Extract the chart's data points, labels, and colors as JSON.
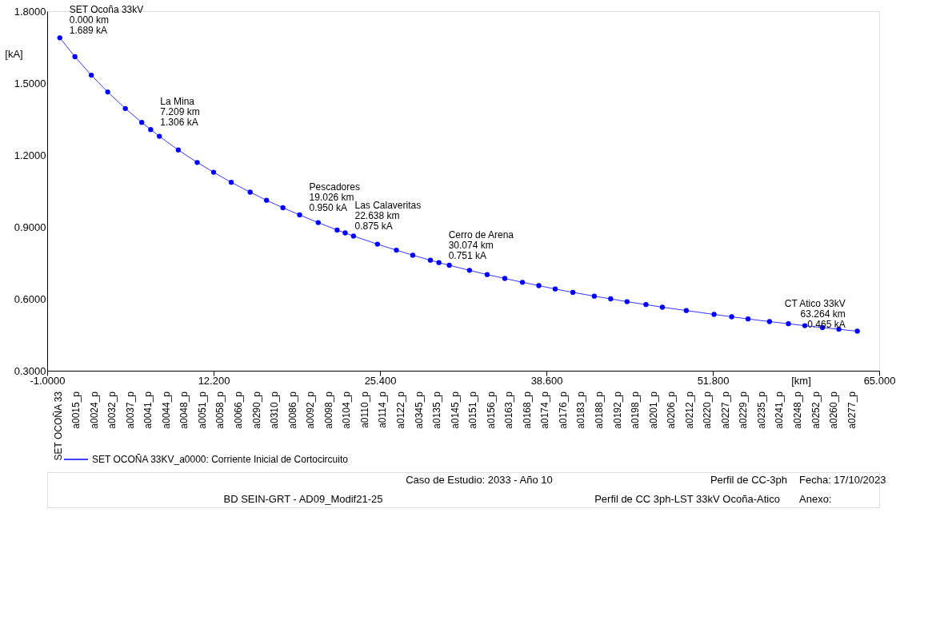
{
  "chart_data": {
    "type": "line",
    "marker": "circle",
    "legend": "bottom",
    "grid": false,
    "xlabel": "[km]",
    "ylabel": "[kA]",
    "x": [
      0,
      1.2,
      2.5,
      3.8,
      5.2,
      6.5,
      7.209,
      7.9,
      9.4,
      10.9,
      12.2,
      13.6,
      15.1,
      16.4,
      17.7,
      19.026,
      20.5,
      22.0,
      22.638,
      23.3,
      25.2,
      26.7,
      28.0,
      29.4,
      30.074,
      30.9,
      32.5,
      33.9,
      35.3,
      36.7,
      38.0,
      39.3,
      40.7,
      42.4,
      43.7,
      45.0,
      46.5,
      47.8,
      49.7,
      51.9,
      53.3,
      54.6,
      56.3,
      57.8,
      59.1,
      60.5,
      61.8,
      63.264
    ],
    "series": [
      {
        "name": "SET OCOÑA 33KV_a0000: Corriente Inicial de Cortocircuito",
        "color": "#0000ff",
        "values": [
          1.689,
          1.61,
          1.533,
          1.463,
          1.394,
          1.336,
          1.306,
          1.278,
          1.221,
          1.169,
          1.128,
          1.086,
          1.045,
          1.011,
          0.98,
          0.95,
          0.918,
          0.887,
          0.875,
          0.862,
          0.828,
          0.803,
          0.782,
          0.761,
          0.751,
          0.74,
          0.719,
          0.701,
          0.685,
          0.669,
          0.655,
          0.641,
          0.627,
          0.611,
          0.6,
          0.588,
          0.576,
          0.565,
          0.551,
          0.535,
          0.525,
          0.516,
          0.505,
          0.496,
          0.488,
          0.48,
          0.473,
          0.465
        ]
      }
    ],
    "xlim": [
      -1,
      65
    ],
    "ylim": [
      0.3,
      1.8
    ],
    "xticks": [
      {
        "value": -1,
        "label": "-1.0000"
      },
      {
        "value": 12.2,
        "label": "12.200"
      },
      {
        "value": 25.4,
        "label": "25.400"
      },
      {
        "value": 38.6,
        "label": "38.600"
      },
      {
        "value": 51.8,
        "label": "51.800"
      },
      {
        "value": 65,
        "label": "65.000"
      }
    ],
    "yticks": [
      {
        "value": 0.3,
        "label": "0.3000"
      },
      {
        "value": 0.6,
        "label": "0.6000"
      },
      {
        "value": 0.9,
        "label": "0.9000"
      },
      {
        "value": 1.2,
        "label": "1.2000"
      },
      {
        "value": 1.5,
        "label": "1.5000"
      },
      {
        "value": 1.8,
        "label": "1.8000"
      }
    ],
    "annotations": [
      "SET OCOÑA 33",
      "a0015_p",
      "a0024_p",
      "a0032_p",
      "a0037_p",
      "a0041_p",
      "a0044_p",
      "a0048_p",
      "a0051_p",
      "a0058_p",
      "a0066_p",
      "a0290_p",
      "a0310_p",
      "a0086_p",
      "a0092_p",
      "a0098_p",
      "a0104_p",
      "a0110_p",
      "a0114_p",
      "a0122_p",
      "a0345_p",
      "a0135_p",
      "a0145_p",
      "a0151_p",
      "a0156_p",
      "a0163_p",
      "a0168_p",
      "a0174_p",
      "a0176_p",
      "a0183_p",
      "a0188_p",
      "a0192_p",
      "a0198_p",
      "a0201_p",
      "a0206_p",
      "a0212_p",
      "a0220_p",
      "a0227_p",
      "a0229_p",
      "a0235_p",
      "a0241_p",
      "a0248_p",
      "a0252_p",
      "a0260_p",
      "a0277_p",
      {
        "text": "SET Ocoña 33kV\n0.000 km\n1.689 kA",
        "x": 0,
        "y": 1.689
      },
      {
        "text": "La Mina\n7.209 km\n1.306 kA",
        "x": 7.209,
        "y": 1.306
      },
      {
        "text": "Pescadores\n19.026 km\n0.950 kA",
        "x": 19.026,
        "y": 0.95
      },
      {
        "text": "Las Calaveritas\n22.638 km\n0.875 kA",
        "x": 22.638,
        "y": 0.875
      },
      {
        "text": "Cerro de Arena\n30.074 km\n0.751 kA",
        "x": 30.074,
        "y": 0.751
      },
      {
        "text": "CT Atico 33kV\n63.264 km\n0.465 kA",
        "x": 63.264,
        "y": 0.465
      },
      "Caso de Estudio: 2033 - Año 10",
      "Perfil de CC-3ph",
      "Fecha: 17/10/2023",
      "BD SEIN-GRT - AD09_Modif21-25",
      "Perfil de CC 3ph-LST 33kV Ocoña-Atico",
      "Anexo:"
    ]
  }
}
